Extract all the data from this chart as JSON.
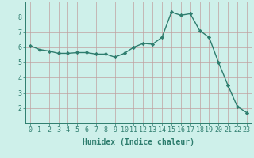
{
  "x": [
    0,
    1,
    2,
    3,
    4,
    5,
    6,
    7,
    8,
    9,
    10,
    11,
    12,
    13,
    14,
    15,
    16,
    17,
    18,
    19,
    20,
    21,
    22,
    23
  ],
  "y": [
    6.1,
    5.85,
    5.75,
    5.6,
    5.6,
    5.65,
    5.65,
    5.55,
    5.55,
    5.35,
    5.6,
    6.0,
    6.25,
    6.2,
    6.65,
    8.3,
    8.1,
    8.2,
    7.1,
    6.65,
    5.0,
    3.5,
    2.1,
    1.7
  ],
  "line_color": "#2e7d6e",
  "marker": "D",
  "markersize": 2.2,
  "linewidth": 1.0,
  "xlabel": "Humidex (Indice chaleur)",
  "xlim": [
    -0.5,
    23.5
  ],
  "ylim": [
    1.0,
    9.0
  ],
  "yticks": [
    2,
    3,
    4,
    5,
    6,
    7,
    8
  ],
  "xticks": [
    0,
    1,
    2,
    3,
    4,
    5,
    6,
    7,
    8,
    9,
    10,
    11,
    12,
    13,
    14,
    15,
    16,
    17,
    18,
    19,
    20,
    21,
    22,
    23
  ],
  "bg_color": "#cef0ea",
  "grid_color": "#c0a0a0",
  "text_color": "#2e7d6e",
  "xlabel_fontsize": 7.0,
  "tick_fontsize": 6.0
}
